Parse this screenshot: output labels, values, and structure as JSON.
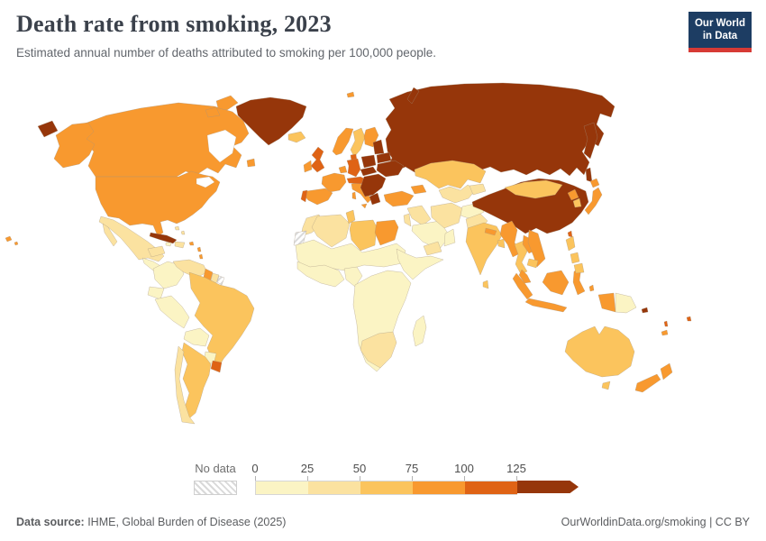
{
  "header": {
    "title": "Death rate from smoking, 2023",
    "subtitle": "Estimated annual number of deaths attributed to smoking per 100,000 people."
  },
  "logo": {
    "line1": "Our World",
    "line2": "in Data",
    "bg": "#1d3d63",
    "accent": "#d73a35"
  },
  "legend": {
    "no_data_label": "No data",
    "ticks": [
      "0",
      "25",
      "50",
      "75",
      "100",
      "125"
    ]
  },
  "footer": {
    "source_label": "Data source:",
    "source_text": " IHME, Global Burden of Disease (2025)",
    "right_text": "OurWorldinData.org/smoking | CC BY"
  },
  "chart_data": {
    "type": "choropleth-world-map",
    "title": "Death rate from smoking, 2023",
    "unit": "deaths attributed to smoking per 100,000 people",
    "year": "2023",
    "legend_min": 0,
    "legend_max": 125,
    "bins": [
      {
        "range": "0-25",
        "color": "#FBF4C4"
      },
      {
        "range": "25-50",
        "color": "#FBE2A0"
      },
      {
        "range": "50-75",
        "color": "#FBC45D"
      },
      {
        "range": "75-100",
        "color": "#F8992F"
      },
      {
        "range": "100-125",
        "color": "#DF6315"
      },
      {
        "range": "125+",
        "color": "#96360A"
      }
    ],
    "no_data_pattern": "diagonal-hatch",
    "entities": [
      {
        "name": "Russia",
        "bin": 5
      },
      {
        "name": "Canada",
        "bin": 3
      },
      {
        "name": "Greenland",
        "bin": 5
      },
      {
        "name": "United States",
        "bin": 3
      },
      {
        "name": "Mexico",
        "bin": 1
      },
      {
        "name": "Central America",
        "bin": 0
      },
      {
        "name": "Cuba",
        "bin": 5
      },
      {
        "name": "Hispaniola",
        "bin": 1
      },
      {
        "name": "Jamaica",
        "bin": 0
      },
      {
        "name": "Bahamas",
        "bin": 1
      },
      {
        "name": "Caribbean islands",
        "bin": 3
      },
      {
        "name": "Colombia",
        "bin": 0
      },
      {
        "name": "Venezuela",
        "bin": 1
      },
      {
        "name": "Guyana",
        "bin": 3
      },
      {
        "name": "Suriname",
        "bin": 1
      },
      {
        "name": "French Guiana",
        "no_data": true
      },
      {
        "name": "Ecuador",
        "bin": 0
      },
      {
        "name": "Peru",
        "bin": 0
      },
      {
        "name": "Brazil",
        "bin": 2
      },
      {
        "name": "Bolivia",
        "bin": 0
      },
      {
        "name": "Paraguay",
        "bin": 0
      },
      {
        "name": "Argentina",
        "bin": 2
      },
      {
        "name": "Chile",
        "bin": 1
      },
      {
        "name": "Uruguay",
        "bin": 4
      },
      {
        "name": "Iceland",
        "bin": 2
      },
      {
        "name": "Svalbard",
        "bin": 3
      },
      {
        "name": "Norway",
        "bin": 3
      },
      {
        "name": "Sweden",
        "bin": 2
      },
      {
        "name": "Finland",
        "bin": 3
      },
      {
        "name": "Denmark",
        "bin": 4
      },
      {
        "name": "United Kingdom",
        "bin": 4
      },
      {
        "name": "Ireland",
        "bin": 3
      },
      {
        "name": "France",
        "bin": 3
      },
      {
        "name": "Benelux",
        "bin": 3
      },
      {
        "name": "Germany",
        "bin": 4
      },
      {
        "name": "Spain",
        "bin": 3
      },
      {
        "name": "Portugal",
        "bin": 4
      },
      {
        "name": "Italy",
        "bin": 3
      },
      {
        "name": "Austria & Switzerland",
        "bin": 4
      },
      {
        "name": "Poland",
        "bin": 5
      },
      {
        "name": "Baltic states",
        "bin": 5
      },
      {
        "name": "Belarus",
        "bin": 5
      },
      {
        "name": "Ukraine",
        "bin": 5
      },
      {
        "name": "Czechia & Slovakia",
        "bin": 5
      },
      {
        "name": "Hungary & Balkans",
        "bin": 5
      },
      {
        "name": "Greece",
        "bin": 5
      },
      {
        "name": "Turkey",
        "bin": 3
      },
      {
        "name": "Caucasus",
        "bin": 3
      },
      {
        "name": "Kazakhstan",
        "bin": 2
      },
      {
        "name": "Uzbekistan & Turkmenistan",
        "bin": 1
      },
      {
        "name": "Kyrgyzstan & Tajikistan",
        "bin": 1
      },
      {
        "name": "Syria & Iraq",
        "bin": 1
      },
      {
        "name": "Israel & Jordan",
        "bin": 1
      },
      {
        "name": "Saudi Arabia",
        "bin": 0
      },
      {
        "name": "Yemen",
        "bin": 1
      },
      {
        "name": "Oman",
        "bin": 0
      },
      {
        "name": "Iran",
        "bin": 1
      },
      {
        "name": "Afghanistan",
        "bin": 0
      },
      {
        "name": "Pakistan",
        "bin": 1
      },
      {
        "name": "India",
        "bin": 2
      },
      {
        "name": "Nepal",
        "bin": 3
      },
      {
        "name": "Bangladesh",
        "bin": 2
      },
      {
        "name": "Sri Lanka",
        "bin": 2
      },
      {
        "name": "China",
        "bin": 5
      },
      {
        "name": "Mongolia",
        "bin": 2
      },
      {
        "name": "North Korea",
        "bin": 3
      },
      {
        "name": "South Korea",
        "bin": 2
      },
      {
        "name": "Japan",
        "bin": 3
      },
      {
        "name": "Taiwan",
        "bin": 4
      },
      {
        "name": "Myanmar",
        "bin": 3
      },
      {
        "name": "Thailand",
        "bin": 2
      },
      {
        "name": "Laos",
        "bin": 3
      },
      {
        "name": "Vietnam",
        "bin": 3
      },
      {
        "name": "Cambodia",
        "bin": 2
      },
      {
        "name": "Malaysia",
        "bin": 3
      },
      {
        "name": "Indonesia",
        "bin": 3
      },
      {
        "name": "Philippines",
        "bin": 2
      },
      {
        "name": "Papua New Guinea",
        "bin": 0
      },
      {
        "name": "Solomon Islands",
        "bin": 5
      },
      {
        "name": "Vanuatu",
        "bin": 4
      },
      {
        "name": "Fiji",
        "bin": 4
      },
      {
        "name": "New Caledonia",
        "bin": 3
      },
      {
        "name": "Australia",
        "bin": 2
      },
      {
        "name": "New Zealand",
        "bin": 3
      },
      {
        "name": "Morocco",
        "bin": 1
      },
      {
        "name": "Western Sahara",
        "no_data": true
      },
      {
        "name": "Algeria",
        "bin": 1
      },
      {
        "name": "Tunisia",
        "bin": 2
      },
      {
        "name": "Libya",
        "bin": 2
      },
      {
        "name": "Egypt",
        "bin": 3
      },
      {
        "name": "Sahel & Sudan",
        "bin": 0
      },
      {
        "name": "West Africa",
        "bin": 0
      },
      {
        "name": "Nigeria & Cameroon",
        "bin": 0
      },
      {
        "name": "Horn of Africa",
        "bin": 0
      },
      {
        "name": "Central & Southern Africa",
        "bin": 0
      },
      {
        "name": "South Africa",
        "bin": 1
      },
      {
        "name": "Madagascar",
        "bin": 0
      },
      {
        "name": "Hawaii (United States)",
        "bin": 3
      }
    ]
  }
}
